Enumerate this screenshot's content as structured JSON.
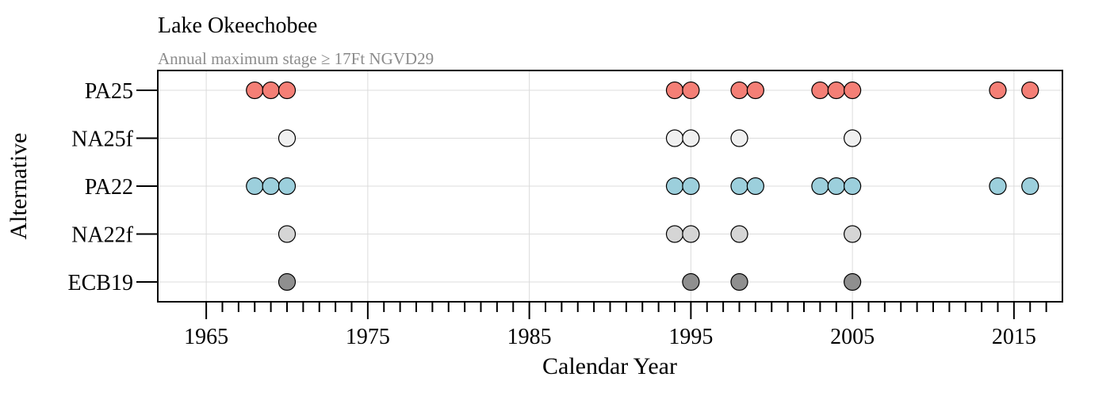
{
  "chart_data": {
    "type": "scatter",
    "title": "Lake Okeechobee",
    "subtitle": "Annual maximum stage ≥ 17Ft NGVD29",
    "xlabel": "Calendar Year",
    "ylabel": "Alternative",
    "xlim": [
      1962,
      2018
    ],
    "x_major_ticks": [
      1965,
      1975,
      1985,
      1995,
      2005,
      2015
    ],
    "x_tick_labels": [
      "1965",
      "1975",
      "1985",
      "1995",
      "2005",
      "2015"
    ],
    "x_minor_tick_step": 1,
    "categories": [
      "PA25",
      "NA25f",
      "PA22",
      "NA22f",
      "ECB19"
    ],
    "grid": true,
    "legend": "none",
    "series": [
      {
        "category": "PA25",
        "color": "#f47f76",
        "x": [
          1968,
          1969,
          1970,
          1994,
          1995,
          1998,
          1999,
          2003,
          2004,
          2005,
          2014,
          2016
        ]
      },
      {
        "category": "NA25f",
        "color": "#f0f0f0",
        "x": [
          1970,
          1994,
          1995,
          1998,
          2005
        ]
      },
      {
        "category": "PA22",
        "color": "#9ccfdc",
        "x": [
          1968,
          1969,
          1970,
          1994,
          1995,
          1998,
          1999,
          2003,
          2004,
          2005,
          2014,
          2016
        ]
      },
      {
        "category": "NA22f",
        "color": "#d5d5d5",
        "x": [
          1970,
          1994,
          1995,
          1998,
          2005
        ]
      },
      {
        "category": "ECB19",
        "color": "#8f8f8f",
        "x": [
          1970,
          1995,
          1998,
          2005
        ]
      }
    ]
  }
}
